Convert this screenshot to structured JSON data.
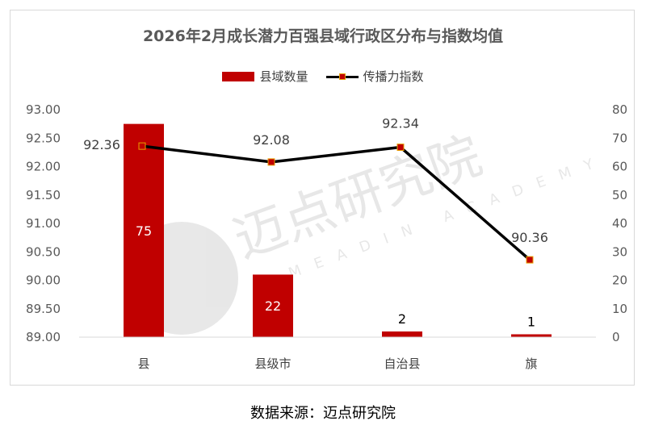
{
  "chart_data": {
    "type": "bar+line",
    "title": "2026年2月成长潜力百强县域行政区分布与指数均值",
    "categories": [
      "县",
      "县级市",
      "自治县",
      "旗"
    ],
    "series": [
      {
        "name": "县域数量",
        "type": "bar",
        "axis": "right",
        "values": [
          75,
          22,
          2,
          1
        ],
        "color": "#c00000"
      },
      {
        "name": "传播力指数",
        "type": "line",
        "axis": "left",
        "values": [
          92.36,
          92.08,
          92.34,
          90.36
        ],
        "color": "#000000",
        "marker_color": "#c00000"
      }
    ],
    "y_left": {
      "ylim": [
        89.0,
        93.0
      ],
      "ticks": [
        "89.00",
        "89.50",
        "90.00",
        "90.50",
        "91.00",
        "91.50",
        "92.00",
        "92.50",
        "93.00"
      ]
    },
    "y_right": {
      "ylim": [
        0,
        80
      ],
      "ticks": [
        "0",
        "10",
        "20",
        "30",
        "40",
        "50",
        "60",
        "70",
        "80"
      ]
    },
    "legend_position": "top-center",
    "grid": false
  },
  "watermark": {
    "text_cn": "迈点研究院",
    "text_en": "MEADIN ACADEMY"
  },
  "source": "数据来源：迈点研究院"
}
